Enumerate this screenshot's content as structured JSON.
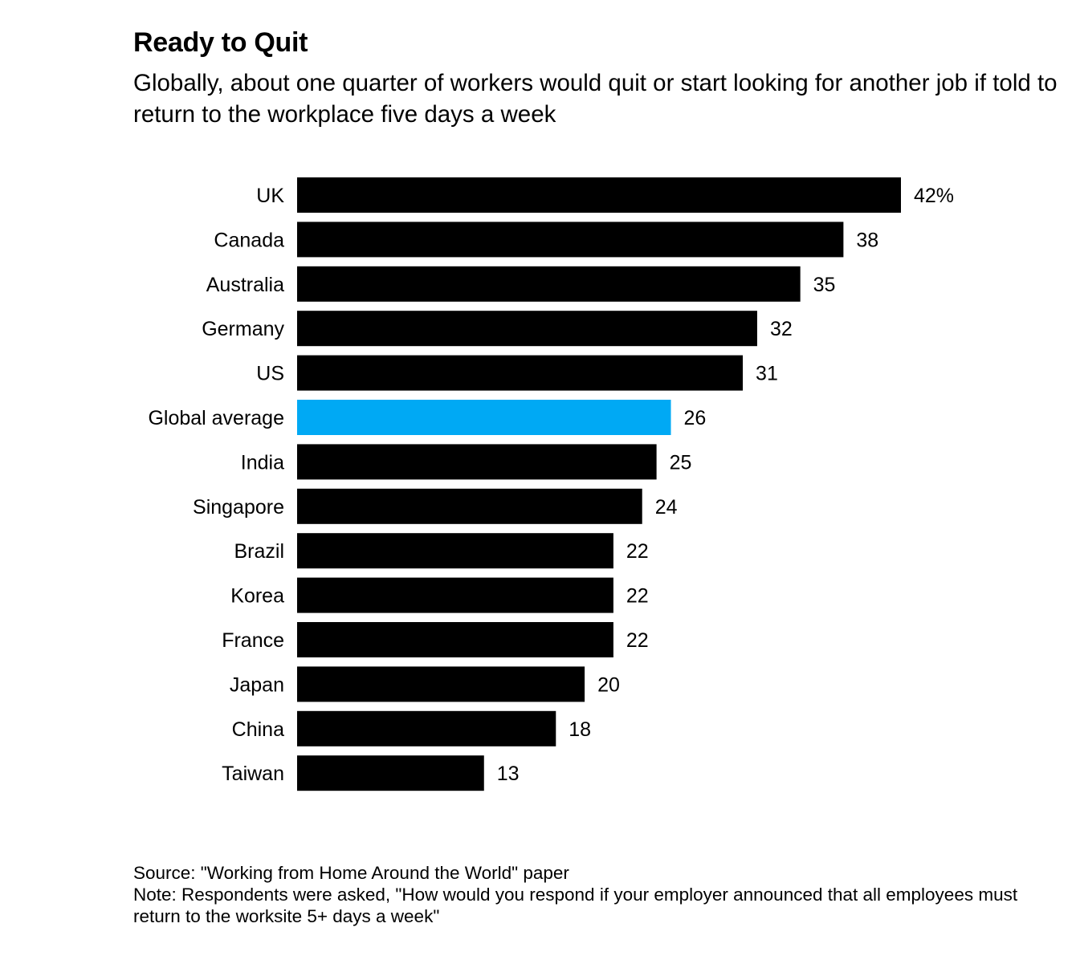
{
  "header": {
    "title": "Ready to Quit",
    "subtitle": "Globally, about one quarter of workers would quit or start looking for another job if told to return to the workplace five days a week"
  },
  "chart_data": {
    "type": "bar",
    "orientation": "horizontal",
    "title": "Ready to Quit",
    "subtitle": "Globally, about one quarter of workers would quit or start looking for another job if told to return to the workplace five days a week",
    "categories": [
      "UK",
      "Canada",
      "Australia",
      "Germany",
      "US",
      "Global average",
      "India",
      "Singapore",
      "Brazil",
      "Korea",
      "France",
      "Japan",
      "China",
      "Taiwan"
    ],
    "values": [
      42,
      38,
      35,
      32,
      31,
      26,
      25,
      24,
      22,
      22,
      22,
      20,
      18,
      13
    ],
    "value_labels": [
      "42%",
      "38",
      "35",
      "32",
      "31",
      "26",
      "25",
      "24",
      "22",
      "22",
      "22",
      "20",
      "18",
      "13"
    ],
    "unit": "%",
    "highlight_category": "Global average",
    "colors": {
      "bar": "#000000",
      "highlight": "#00a9f4"
    },
    "xlim": [
      0,
      42
    ],
    "grid": false,
    "legend": "none"
  },
  "footer": {
    "source": "Source: \"Working from Home Around the World\" paper",
    "note": "Note: Respondents were asked, \"How would you respond if your employer announced that all employees must return to the worksite 5+ days a week\""
  }
}
